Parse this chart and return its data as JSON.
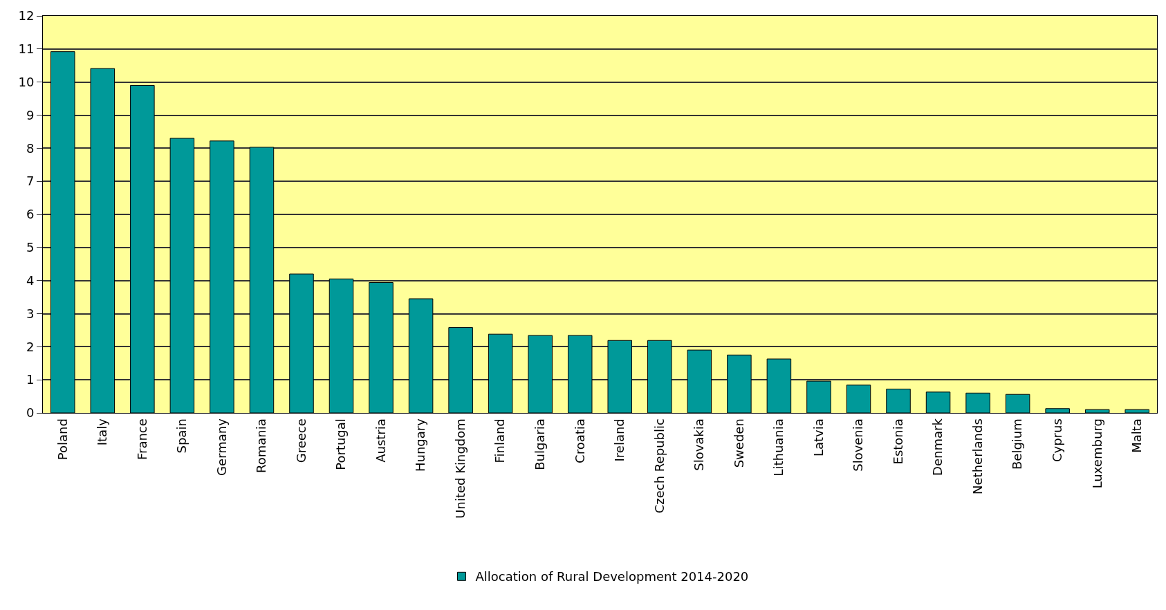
{
  "chart_data": {
    "type": "bar",
    "categories": [
      "Poland",
      "Italy",
      "France",
      "Spain",
      "Germany",
      "Romania",
      "Greece",
      "Portugal",
      "Austria",
      "Hungary",
      "United Kingdom",
      "Finland",
      "Bulgaria",
      "Croatia",
      "Ireland",
      "Czech Republic",
      "Slovakia",
      "Sweden",
      "Lithuania",
      "Latvia",
      "Slovenia",
      "Estonia",
      "Denmark",
      "Netherlands",
      "Belgium",
      "Cyprus",
      "Luxemburg",
      "Malta"
    ],
    "series": [
      {
        "name": "Allocation of Rural Development 2014-2020",
        "color": "#009999",
        "values": [
          10.92,
          10.41,
          9.9,
          8.3,
          8.22,
          8.03,
          4.2,
          4.05,
          3.94,
          3.45,
          2.58,
          2.38,
          2.34,
          2.34,
          2.19,
          2.19,
          1.9,
          1.75,
          1.63,
          0.96,
          0.84,
          0.72,
          0.63,
          0.6,
          0.56,
          0.13,
          0.1,
          0.1
        ]
      }
    ],
    "ylim": [
      0,
      12
    ],
    "yticks": [
      0,
      1,
      2,
      3,
      4,
      5,
      6,
      7,
      8,
      9,
      10,
      11,
      12
    ],
    "grid": "y",
    "legend": "bottom"
  }
}
